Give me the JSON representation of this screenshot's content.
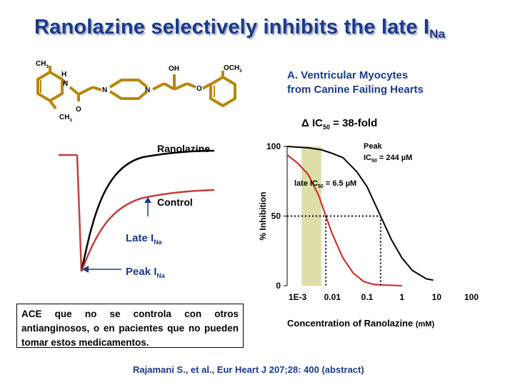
{
  "title": {
    "main": "Ranolazine selectively inhibits the late I",
    "sub": "Na"
  },
  "molecule_labels": {
    "ch3_top": "CH",
    "ch3_bottom": "CH",
    "nh_h": "H",
    "n1": "N",
    "o_carbonyl": "O",
    "n2": "N",
    "n3": "N",
    "oh": "OH",
    "o_ether": "O",
    "och3": "OCH",
    "sub3": "3"
  },
  "current_trace": {
    "ranolazine_label": "Ranolazine",
    "control_label": "Control",
    "late_label": "Late I",
    "late_sub": "Na",
    "peak_label": "Peak I",
    "peak_sub": "Na"
  },
  "panel": {
    "line1": "A. Ventricular Myocytes",
    "line2": "from Canine Failing Hearts",
    "fold_prefix": "Δ IC",
    "fold_sub": "50",
    "fold_suffix": " = 38-fold"
  },
  "ace_note": "ACE que no se controla con otros antianginosos, o en pacientes que no pueden tomar estos medicamentos.",
  "reference": "Rajamani S., et al., Eur Heart J 207;28: 400 (abstract)",
  "colors": {
    "title": "#1b3a8a",
    "late_curve": "#d42020",
    "peak_curve": "#000000",
    "band": "#d8d89a",
    "trace_control": "#c04040",
    "molecule": "#b8860b"
  },
  "chart_data": {
    "type": "line",
    "xscale": "log",
    "xlabel": "Concentration of Ranolazine",
    "xunit": "(mM)",
    "ylabel": "% Inhibition",
    "xticks": [
      "1E-3",
      "0.01",
      "0.1",
      "1",
      "10",
      "100"
    ],
    "yticks": [
      "0",
      "50",
      "100"
    ],
    "ylim": [
      0,
      100
    ],
    "series": [
      {
        "name": "late",
        "color": "#d42020",
        "ic50": 6.5,
        "x": [
          0.0005,
          0.001,
          0.002,
          0.004,
          0.0065,
          0.01,
          0.02,
          0.04,
          0.08,
          0.15,
          0.3,
          1
        ],
        "values": [
          94,
          88,
          80,
          65,
          50,
          37,
          20,
          9,
          3,
          1,
          0.5,
          0
        ]
      },
      {
        "name": "Peak",
        "color": "#000000",
        "ic50": 244,
        "x": [
          0.0005,
          0.001,
          0.002,
          0.005,
          0.01,
          0.02,
          0.05,
          0.1,
          0.244,
          0.5,
          1,
          2,
          5,
          8
        ],
        "values": [
          100,
          99.5,
          99,
          97.5,
          95,
          92,
          82,
          71,
          50,
          33,
          20,
          11,
          5,
          4
        ]
      }
    ],
    "annotations": {
      "peak_title": "Peak",
      "peak_ic_prefix": "IC",
      "peak_ic_sub": "50",
      "peak_ic_value": " = 244 µM",
      "late_ic_prefix": "late IC",
      "late_ic_sub": "50",
      "late_ic_value": " = 6.5 µM"
    }
  }
}
